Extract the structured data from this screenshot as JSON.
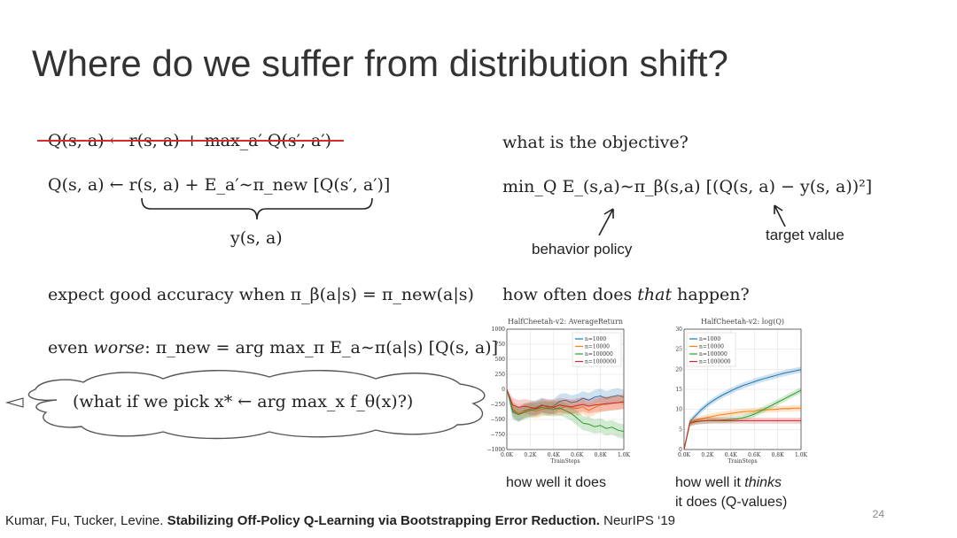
{
  "title": "Where do we suffer from distribution shift?",
  "left": {
    "struck_eq": "Q(s, a) ← r(s, a) + max_a′ Q(s′, a′)",
    "new_eq": "Q(s, a) ← r(s, a) + E_a′∼π_new [Q(s′, a′)]",
    "brace_label": "y(s, a)",
    "expect": "expect good accuracy when π_β(a|s) = π_new(a|s)",
    "worse_prefix": "even ",
    "worse_word": "worse",
    "worse_rest": ": π_new = arg max_π E_a∼π(a|s) [Q(s, a)]",
    "cloud": "(what if we pick x* ← arg max_x f_θ(x)?)"
  },
  "right": {
    "objective_q": "what is the objective?",
    "objective_eq": "min_Q E_(s,a)∼π_β(s,a) [(Q(s, a) − y(s, a))²]",
    "behavior_label": "behavior policy",
    "target_label": "target value",
    "how_often_prefix": "how often does ",
    "how_often_word": "that",
    "how_often_suffix": " happen?",
    "caption_left": "how well it does",
    "caption_right_1a": "how well it ",
    "caption_right_1b": "thinks",
    "caption_right_2": "it does (Q-values)"
  },
  "citation": {
    "authors": "Kumar, Fu, Tucker, Levine. ",
    "paper": "Stabilizing Off-Policy Q-Learning via Bootstrapping Error Reduction.",
    "venue": " NeurIPS ‘19"
  },
  "page_number": "24",
  "chart_data": [
    {
      "type": "line",
      "title": "HalfCheetah-v2: AverageReturn",
      "xlabel": "TrainSteps",
      "ylabel": "",
      "xlim": [
        0,
        1000
      ],
      "ylim": [
        -1000,
        1000
      ],
      "x_ticks": [
        "0.0K",
        "0.2K",
        "0.4K",
        "0.6K",
        "0.8K",
        "1.0K"
      ],
      "y_ticks": [
        "1000",
        "750",
        "500",
        "250",
        "0",
        "−250",
        "−500",
        "−750",
        "−1000"
      ],
      "grid": true,
      "legend_position": "top-right",
      "x": [
        0,
        50,
        100,
        150,
        200,
        250,
        300,
        350,
        400,
        450,
        500,
        550,
        600,
        650,
        700,
        750,
        800,
        850,
        900,
        950,
        1000
      ],
      "series": [
        {
          "name": "n=1000",
          "color": "#1f77b4",
          "values": [
            0,
            -380,
            -420,
            -350,
            -330,
            -300,
            -260,
            -300,
            -280,
            -200,
            -180,
            -220,
            -200,
            -150,
            -180,
            -130,
            -110,
            -150,
            -120,
            -100,
            -130
          ]
        },
        {
          "name": "n=10000",
          "color": "#ff7f0e",
          "values": [
            0,
            -320,
            -400,
            -360,
            -340,
            -360,
            -330,
            -320,
            -300,
            -330,
            -280,
            -300,
            -320,
            -290,
            -350,
            -300,
            -260,
            -240,
            -230,
            -220,
            -200
          ]
        },
        {
          "name": "n=100000",
          "color": "#2ca02c",
          "values": [
            0,
            -350,
            -420,
            -380,
            -350,
            -330,
            -300,
            -320,
            -330,
            -310,
            -350,
            -400,
            -480,
            -560,
            -580,
            -620,
            -600,
            -650,
            -630,
            -680,
            -700
          ]
        },
        {
          "name": "n=1000000",
          "color": "#d62728",
          "values": [
            0,
            -260,
            -300,
            -280,
            -300,
            -320,
            -270,
            -280,
            -300,
            -260,
            -280,
            -290,
            -270,
            -250,
            -280,
            -260,
            -250,
            -240,
            -230,
            -220,
            -210
          ]
        }
      ]
    },
    {
      "type": "line",
      "title": "HalfCheetah-v2: log(Q)",
      "xlabel": "TrainSteps",
      "ylabel": "",
      "xlim": [
        0,
        1000
      ],
      "ylim": [
        0,
        30
      ],
      "x_ticks": [
        "0.0K",
        "0.2K",
        "0.4K",
        "0.6K",
        "0.8K",
        "1.0K"
      ],
      "y_ticks": [
        "30",
        "25",
        "20",
        "15",
        "10",
        "5",
        "0"
      ],
      "grid": true,
      "legend_position": "top-left",
      "x": [
        0,
        50,
        100,
        150,
        200,
        250,
        300,
        350,
        400,
        450,
        500,
        550,
        600,
        650,
        700,
        750,
        800,
        850,
        900,
        950,
        1000
      ],
      "series": [
        {
          "name": "n=1000",
          "color": "#1f77b4",
          "values": [
            0,
            7.0,
            8.5,
            10.0,
            11.2,
            12.2,
            13.1,
            13.9,
            14.6,
            15.3,
            15.9,
            16.4,
            16.9,
            17.4,
            17.8,
            18.2,
            18.6,
            19.0,
            19.3,
            19.6,
            19.9
          ]
        },
        {
          "name": "n=10000",
          "color": "#ff7f0e",
          "values": [
            0,
            6.8,
            7.3,
            7.7,
            8.0,
            8.3,
            8.6,
            8.8,
            9.0,
            9.2,
            9.4,
            9.5,
            9.6,
            9.8,
            9.9,
            10.0,
            10.1,
            10.2,
            10.2,
            10.3,
            10.3
          ]
        },
        {
          "name": "n=100000",
          "color": "#2ca02c",
          "values": [
            0,
            6.5,
            6.9,
            7.1,
            7.2,
            7.3,
            7.3,
            7.4,
            7.5,
            7.6,
            7.9,
            8.3,
            8.8,
            9.5,
            10.3,
            11.0,
            11.8,
            12.5,
            13.3,
            14.0,
            14.8
          ]
        },
        {
          "name": "n=1000000",
          "color": "#d62728",
          "values": [
            0,
            6.6,
            7.0,
            7.1,
            7.2,
            7.2,
            7.2,
            7.2,
            7.2,
            7.2,
            7.2,
            7.2,
            7.2,
            7.2,
            7.2,
            7.2,
            7.2,
            7.2,
            7.2,
            7.2,
            7.2
          ]
        }
      ]
    }
  ]
}
